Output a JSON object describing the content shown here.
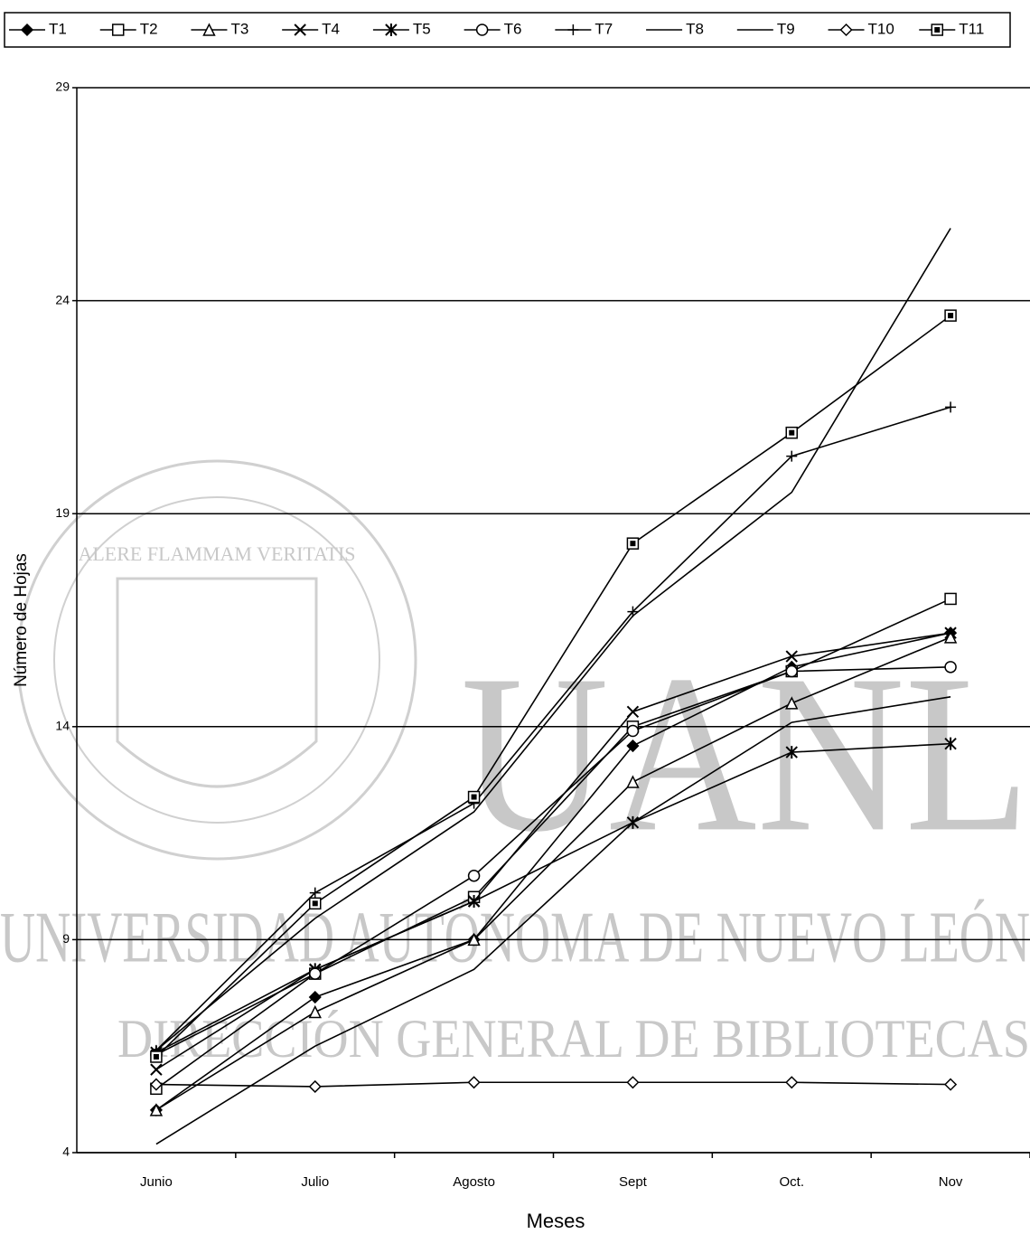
{
  "chart_data": {
    "type": "line",
    "x_label": "Meses",
    "y_label": "Número de Hojas",
    "categories": [
      "Junio",
      "Julio",
      "Agosto",
      "Sept",
      "Oct.",
      "Nov"
    ],
    "ylim": [
      4,
      29
    ],
    "yticks": [
      4,
      9,
      14,
      19,
      24,
      29
    ],
    "grid": true,
    "series": [
      {
        "name": "T1",
        "color": "#000000",
        "marker": "diamond-filled",
        "values": [
          5.0,
          7.65,
          9.0,
          13.55,
          15.4,
          16.2
        ]
      },
      {
        "name": "T2",
        "color": "#000000",
        "marker": "square",
        "values": [
          5.5,
          8.2,
          10.0,
          14.0,
          15.3,
          17.0
        ]
      },
      {
        "name": "T3",
        "color": "#000000",
        "marker": "triangle",
        "values": [
          5.0,
          7.3,
          9.0,
          12.7,
          14.55,
          16.1
        ]
      },
      {
        "name": "T4",
        "color": "#000000",
        "marker": "x",
        "values": [
          5.95,
          8.3,
          9.9,
          14.35,
          15.65,
          16.2
        ]
      },
      {
        "name": "T5",
        "color": "#000000",
        "marker": "star",
        "values": [
          6.35,
          8.3,
          9.9,
          11.75,
          13.4,
          13.6
        ]
      },
      {
        "name": "T6",
        "color": "#000000",
        "marker": "circle",
        "values": [
          6.3,
          8.2,
          10.5,
          13.9,
          15.3,
          15.4
        ]
      },
      {
        "name": "T7",
        "color": "#000000",
        "marker": "plus",
        "values": [
          6.4,
          10.1,
          12.2,
          16.7,
          20.35,
          21.5
        ]
      },
      {
        "name": "T8",
        "color": "#000000",
        "marker": "none",
        "values": [
          4.2,
          6.5,
          8.3,
          11.75,
          14.1,
          14.7
        ]
      },
      {
        "name": "T9",
        "color": "#000000",
        "marker": "none",
        "values": [
          6.4,
          9.5,
          12.0,
          16.6,
          19.5,
          25.7
        ]
      },
      {
        "name": "T10",
        "color": "#000000",
        "marker": "diamond",
        "values": [
          5.6,
          5.55,
          5.65,
          5.65,
          5.65,
          5.6
        ]
      },
      {
        "name": "T11",
        "color": "#000000",
        "marker": "square-boxed",
        "values": [
          6.25,
          9.85,
          12.35,
          18.3,
          20.9,
          23.65
        ]
      }
    ]
  },
  "watermark": {
    "initials": "UANL",
    "university": "UNIVERSIDAD AUTÓNOMA DE NUEVO LEÓN",
    "library": "DIRECCIÓN GENERAL DE BIBLIOTECAS",
    "motto": "ALERE FLAMMAM VERITATIS"
  }
}
